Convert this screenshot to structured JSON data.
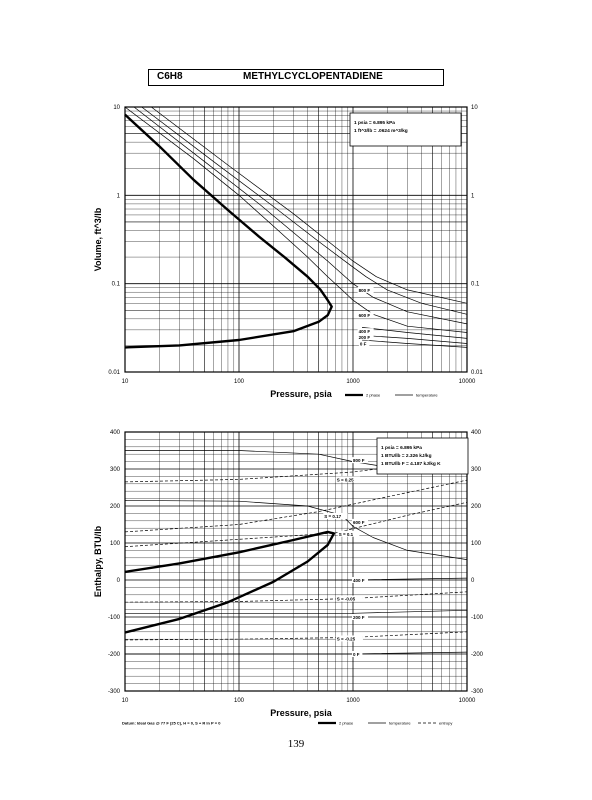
{
  "page": {
    "compound_code": "C6H8",
    "compound_name": "METHYLCYCLOPENTADIENE",
    "page_number": "139"
  },
  "chart_data": [
    {
      "type": "line",
      "xlabel": "Pressure, psia",
      "ylabel": "Volume, ft^3/lb",
      "x_scale": "log",
      "y_scale": "log",
      "xlim": [
        10,
        10000
      ],
      "ylim": [
        0.01,
        10
      ],
      "x_ticks": [
        10,
        100,
        1000,
        10000
      ],
      "x_tick_labels": [
        "10",
        "100",
        "1000",
        "10000"
      ],
      "y_ticks": [
        0.01,
        0.1,
        1,
        10
      ],
      "y_tick_labels": [
        "0.01",
        "0.1",
        "1",
        "10"
      ],
      "right_tick_labels": [
        "0.01",
        "0.1",
        "1",
        "10"
      ],
      "grid": true,
      "notes": [
        "1 psia = 6.895 kPa",
        "1 ft^3/lb = .0624 m^3/kg"
      ],
      "legend": [
        "2 phase",
        "temperature"
      ],
      "series": [
        {
          "kind": "2 phase",
          "points": [
            [
              10,
              8.2
            ],
            [
              13,
              6.0
            ],
            [
              20,
              3.6
            ],
            [
              40,
              1.5
            ],
            [
              80,
              0.68
            ],
            [
              150,
              0.34
            ],
            [
              250,
              0.2
            ],
            [
              400,
              0.12
            ],
            [
              520,
              0.085
            ],
            [
              600,
              0.065
            ],
            [
              650,
              0.055
            ],
            [
              600,
              0.044
            ],
            [
              500,
              0.037
            ],
            [
              300,
              0.029
            ],
            [
              100,
              0.023
            ],
            [
              30,
              0.02
            ],
            [
              10,
              0.019
            ]
          ]
        },
        {
          "kind": "temperature",
          "points": [
            [
              10,
              10
            ],
            [
              40,
              2.6
            ],
            [
              100,
              1.0
            ],
            [
              200,
              0.45
            ],
            [
              400,
              0.2
            ],
            [
              600,
              0.12
            ],
            [
              800,
              0.085
            ],
            [
              1000,
              0.065
            ],
            [
              1500,
              0.045
            ],
            [
              3000,
              0.033
            ],
            [
              10000,
              0.028
            ]
          ]
        },
        {
          "kind": "temperature",
          "points": [
            [
              12,
              10
            ],
            [
              50,
              2.4
            ],
            [
              150,
              0.8
            ],
            [
              300,
              0.38
            ],
            [
              600,
              0.18
            ],
            [
              1000,
              0.1
            ],
            [
              1500,
              0.07
            ],
            [
              3000,
              0.048
            ],
            [
              10000,
              0.035
            ]
          ]
        },
        {
          "kind": "temperature",
          "points": [
            [
              14,
              10
            ],
            [
              60,
              2.4
            ],
            [
              200,
              0.75
            ],
            [
              500,
              0.3
            ],
            [
              900,
              0.17
            ],
            [
              1300,
              0.12
            ],
            [
              2000,
              0.085
            ],
            [
              4000,
              0.06
            ],
            [
              10000,
              0.045
            ]
          ]
        },
        {
          "kind": "temperature",
          "points": [
            [
              17,
              10
            ],
            [
              80,
              2.2
            ],
            [
              300,
              0.62
            ],
            [
              700,
              0.26
            ],
            [
              1000,
              0.18
            ],
            [
              1600,
              0.12
            ],
            [
              3000,
              0.085
            ],
            [
              10000,
              0.06
            ]
          ]
        },
        {
          "kind": "temperature",
          "points": [
            [
              1200,
              0.032
            ],
            [
              3000,
              0.028
            ],
            [
              10000,
              0.024
            ]
          ]
        },
        {
          "kind": "temperature",
          "points": [
            [
              1200,
              0.026
            ],
            [
              3000,
              0.024
            ],
            [
              10000,
              0.021
            ]
          ]
        },
        {
          "kind": "temperature",
          "points": [
            [
              1200,
              0.023
            ],
            [
              3000,
              0.021
            ],
            [
              10000,
              0.019
            ]
          ]
        }
      ],
      "isotherm_labels": [
        {
          "text": "800 F",
          "x": 1120,
          "y": 0.085
        },
        {
          "text": "600 F",
          "x": 1120,
          "y": 0.044
        },
        {
          "text": "400 F",
          "x": 1120,
          "y": 0.029
        },
        {
          "text": "200 F",
          "x": 1120,
          "y": 0.025
        },
        {
          "text": "0 F",
          "x": 1150,
          "y": 0.021
        }
      ]
    },
    {
      "type": "line",
      "xlabel": "Pressure, psia",
      "ylabel": "Enthalpy, BTU/lb",
      "x_scale": "log",
      "xlim": [
        10,
        10000
      ],
      "ylim": [
        -300,
        400
      ],
      "x_ticks": [
        10,
        100,
        1000,
        10000
      ],
      "x_tick_labels": [
        "10",
        "100",
        "1000",
        "10000"
      ],
      "y_ticks": [
        -300,
        -200,
        -100,
        0,
        100,
        200,
        300,
        400
      ],
      "y_tick_labels": [
        "-300",
        "-200",
        "-100",
        "0",
        "100",
        "200",
        "300",
        "400"
      ],
      "right_tick_labels": [
        "-300",
        "-200",
        "-100",
        "0",
        "100",
        "200",
        "300",
        "400"
      ],
      "grid": true,
      "notes": [
        "1 psia = 6.895 kPa",
        "1 BTU/lb = 2.326 kJ/kg",
        "1 BTU/lb F = 4.187 kJ/kg K"
      ],
      "datum": "Datum: Ideal Gas @ 77 F (25 C), H = 0, S + R ln P = 0",
      "legend": [
        "2 phase",
        "temperature",
        "entropy"
      ],
      "series": [
        {
          "kind": "2 phase",
          "points": [
            [
              10,
              22
            ],
            [
              30,
              45
            ],
            [
              100,
              75
            ],
            [
              300,
              108
            ],
            [
              600,
              130
            ],
            [
              680,
              126
            ],
            [
              600,
              95
            ],
            [
              400,
              50
            ],
            [
              200,
              -5
            ],
            [
              80,
              -60
            ],
            [
              30,
              -105
            ],
            [
              10,
              -142
            ]
          ]
        },
        {
          "kind": "temperature",
          "points": [
            [
              10,
              350
            ],
            [
              100,
              350
            ],
            [
              500,
              340
            ],
            [
              1000,
              320
            ],
            [
              2000,
              305
            ],
            [
              10000,
              290
            ]
          ]
        },
        {
          "kind": "temperature",
          "points": [
            [
              10,
              215
            ],
            [
              100,
              213
            ],
            [
              400,
              200
            ],
            [
              800,
              175
            ],
            [
              1000,
              145
            ],
            [
              1500,
              115
            ],
            [
              3000,
              80
            ],
            [
              10000,
              55
            ]
          ]
        },
        {
          "kind": "temperature",
          "points": [
            [
              200,
              0
            ],
            [
              1000,
              0
            ],
            [
              10000,
              5
            ]
          ]
        },
        {
          "kind": "temperature",
          "points": [
            [
              10,
              -90
            ],
            [
              1000,
              -90
            ],
            [
              10000,
              -82
            ]
          ]
        },
        {
          "kind": "temperature",
          "points": [
            [
              10,
              -200
            ],
            [
              1000,
              -200
            ],
            [
              10000,
              -195
            ]
          ]
        },
        {
          "kind": "entropy",
          "points": [
            [
              10,
              265
            ],
            [
              100,
              272
            ],
            [
              1000,
              292
            ],
            [
              10000,
              330
            ]
          ]
        },
        {
          "kind": "entropy",
          "points": [
            [
              10,
              130
            ],
            [
              100,
              150
            ],
            [
              500,
              185
            ],
            [
              2000,
              225
            ],
            [
              10000,
              270
            ]
          ]
        },
        {
          "kind": "entropy",
          "points": [
            [
              10,
              90
            ],
            [
              100,
              110
            ],
            [
              700,
              127
            ],
            [
              3000,
              175
            ],
            [
              10000,
              210
            ]
          ]
        },
        {
          "kind": "entropy",
          "points": [
            [
              10,
              -60
            ],
            [
              100,
              -58
            ],
            [
              1000,
              -50
            ],
            [
              10000,
              -32
            ]
          ]
        },
        {
          "kind": "entropy",
          "points": [
            [
              10,
              -162
            ],
            [
              100,
              -160
            ],
            [
              1000,
              -155
            ],
            [
              10000,
              -140
            ]
          ]
        }
      ],
      "isotherm_labels": [
        {
          "text": "800 F",
          "x": 1000,
          "y": 324
        },
        {
          "text": "600 F",
          "x": 1000,
          "y": 157
        },
        {
          "text": "400 F",
          "x": 1000,
          "y": 0
        },
        {
          "text": "200 F",
          "x": 1000,
          "y": -100
        },
        {
          "text": "0 F",
          "x": 1000,
          "y": -200
        }
      ],
      "entropy_labels": [
        {
          "text": "S = 0.25",
          "x": 720,
          "y": 272
        },
        {
          "text": "S = 0.17",
          "x": 560,
          "y": 173
        },
        {
          "text": "S = 0.1",
          "x": 750,
          "y": 125
        },
        {
          "text": "S = -0.05",
          "x": 720,
          "y": -50
        },
        {
          "text": "S = -0.25",
          "x": 720,
          "y": -158
        }
      ]
    }
  ]
}
